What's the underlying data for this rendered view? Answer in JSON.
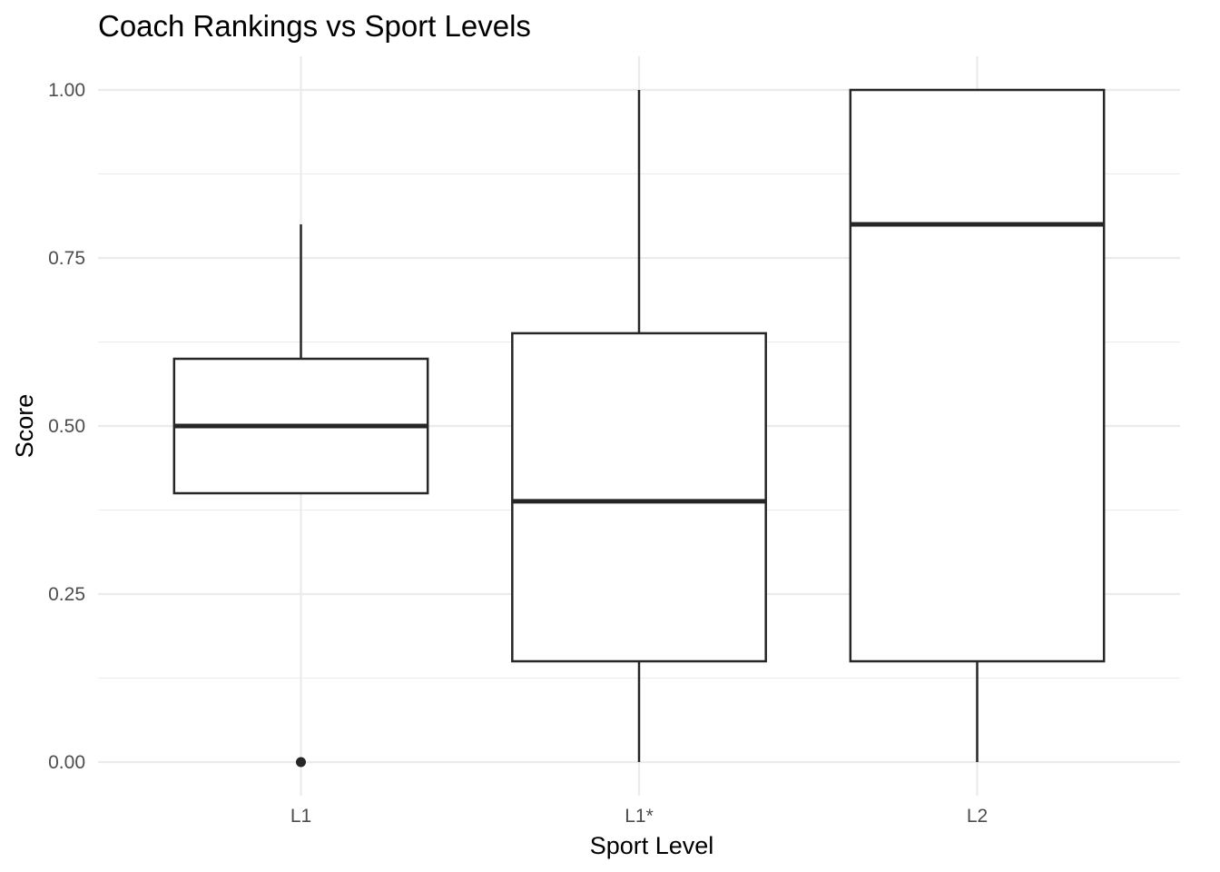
{
  "chart_data": {
    "type": "boxplot",
    "title": "Coach Rankings vs Sport Levels",
    "xlabel": "Sport Level",
    "ylabel": "Score",
    "categories": [
      "L1",
      "L1*",
      "L2"
    ],
    "ylim": [
      -0.05,
      1.05
    ],
    "yticks": [
      0.0,
      0.25,
      0.5,
      0.75,
      1.0
    ],
    "ytick_labels": [
      "0.00",
      "0.25",
      "0.50",
      "0.75",
      "1.00"
    ],
    "grid": true,
    "legend": "none",
    "boxes": [
      {
        "category": "L1",
        "min": 0.4,
        "q1": 0.4,
        "median": 0.5,
        "q3": 0.6,
        "max": 0.8,
        "outliers": [
          0.0
        ]
      },
      {
        "category": "L1*",
        "min": 0.0,
        "q1": 0.15,
        "median": 0.388,
        "q3": 0.638,
        "max": 1.0,
        "outliers": []
      },
      {
        "category": "L2",
        "min": 0.0,
        "q1": 0.15,
        "median": 0.8,
        "q3": 1.0,
        "max": 1.0,
        "outliers": []
      }
    ],
    "colors": {
      "box_line": "#262626",
      "box_fill": "#ffffff",
      "grid": "#ebebeb",
      "tick_text": "#4d4d4d"
    }
  }
}
